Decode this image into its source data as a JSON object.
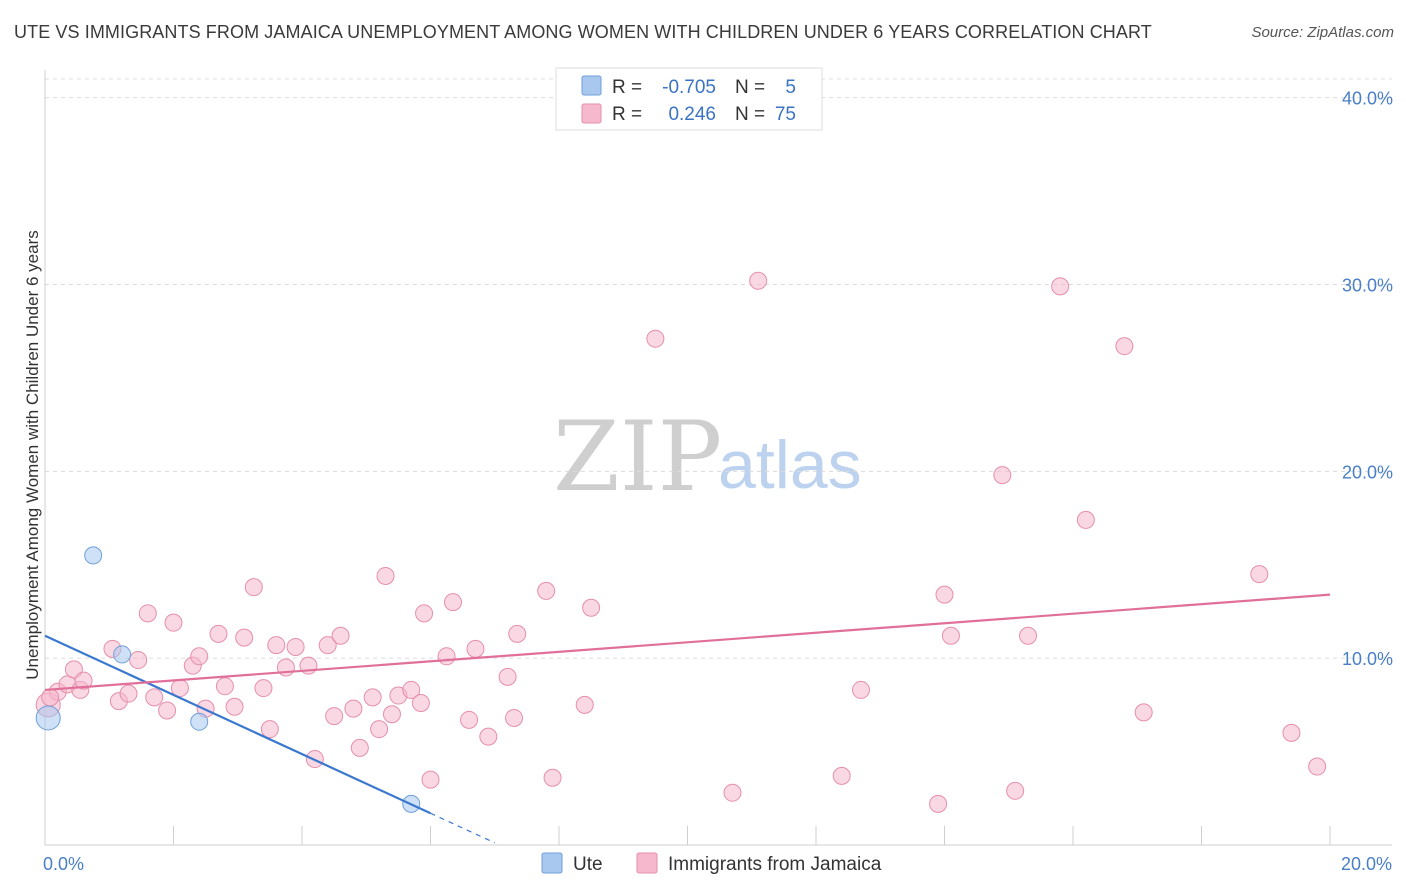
{
  "title": "UTE VS IMMIGRANTS FROM JAMAICA UNEMPLOYMENT AMONG WOMEN WITH CHILDREN UNDER 6 YEARS CORRELATION CHART",
  "source": "Source: ZipAtlas.com",
  "watermark": {
    "zip": "ZIP",
    "atlas": "atlas"
  },
  "legend": {
    "rows": [
      {
        "r_label": "R =",
        "r_value": "-0.705",
        "n_label": "N =",
        "n_value": "5",
        "color": "#a8c8f0"
      },
      {
        "r_label": "R =",
        "r_value": "0.246",
        "n_label": "N =",
        "n_value": "75",
        "color": "#f5b8cc"
      }
    ]
  },
  "bottom_legend": [
    {
      "label": "Ute",
      "color": "#a8c8f0"
    },
    {
      "label": "Immigrants from Jamaica",
      "color": "#f5b8cc"
    }
  ],
  "chart_data": {
    "type": "scatter",
    "title": "UTE VS IMMIGRANTS FROM JAMAICA UNEMPLOYMENT AMONG WOMEN WITH CHILDREN UNDER 6 YEARS CORRELATION CHART",
    "xlabel": "",
    "ylabel": "Unemployment Among Women with Children Under 6 years",
    "xlim": [
      0,
      20
    ],
    "ylim": [
      0,
      41
    ],
    "x_tick_labels": [
      "0.0%",
      "20.0%"
    ],
    "y_ticks": [
      10,
      20,
      30,
      40
    ],
    "y_tick_labels": [
      "10.0%",
      "20.0%",
      "30.0%",
      "40.0%"
    ],
    "grid": true,
    "legend_placement": "top-center",
    "series": [
      {
        "name": "Ute",
        "color": "#a8c8f0",
        "stroke": "#6f9fd8",
        "trend_color": "#3a78d0",
        "trend": {
          "x0": 0,
          "y0": 11.2,
          "x1": 6.0,
          "y1": 1.7,
          "dash_to_x": 7.0
        },
        "points": [
          [
            0.05,
            6.8
          ],
          [
            0.75,
            15.5
          ],
          [
            1.2,
            10.2
          ],
          [
            2.4,
            6.6
          ],
          [
            5.7,
            2.2
          ]
        ]
      },
      {
        "name": "Immigrants from Jamaica",
        "color": "#f5b8cc",
        "stroke": "#e58fab",
        "trend_color": "#e0709a",
        "trend": {
          "x0": 0,
          "y0": 8.3,
          "x1": 20,
          "y1": 13.4
        },
        "points": [
          [
            0.05,
            7.5
          ],
          [
            0.2,
            8.2
          ],
          [
            0.35,
            8.6
          ],
          [
            0.45,
            9.4
          ],
          [
            0.55,
            8.3
          ],
          [
            0.6,
            8.8
          ],
          [
            1.05,
            10.5
          ],
          [
            1.15,
            7.7
          ],
          [
            1.3,
            8.1
          ],
          [
            1.45,
            9.9
          ],
          [
            1.6,
            12.4
          ],
          [
            1.7,
            7.9
          ],
          [
            1.9,
            7.2
          ],
          [
            2.0,
            11.9
          ],
          [
            2.1,
            8.4
          ],
          [
            2.3,
            9.6
          ],
          [
            2.4,
            10.1
          ],
          [
            2.5,
            7.3
          ],
          [
            2.7,
            11.3
          ],
          [
            2.8,
            8.5
          ],
          [
            2.95,
            7.4
          ],
          [
            3.1,
            11.1
          ],
          [
            3.25,
            13.8
          ],
          [
            3.4,
            8.4
          ],
          [
            3.5,
            6.2
          ],
          [
            3.6,
            10.7
          ],
          [
            3.75,
            9.5
          ],
          [
            3.9,
            10.6
          ],
          [
            4.1,
            9.6
          ],
          [
            4.2,
            4.6
          ],
          [
            4.4,
            10.7
          ],
          [
            4.5,
            6.9
          ],
          [
            4.6,
            11.2
          ],
          [
            4.8,
            7.3
          ],
          [
            4.9,
            5.2
          ],
          [
            5.1,
            7.9
          ],
          [
            5.2,
            6.2
          ],
          [
            5.3,
            14.4
          ],
          [
            5.4,
            7.0
          ],
          [
            5.5,
            8.0
          ],
          [
            5.7,
            8.3
          ],
          [
            5.85,
            7.6
          ],
          [
            5.9,
            12.4
          ],
          [
            6.0,
            3.5
          ],
          [
            6.25,
            10.1
          ],
          [
            6.35,
            13.0
          ],
          [
            6.6,
            6.7
          ],
          [
            6.7,
            10.5
          ],
          [
            6.9,
            5.8
          ],
          [
            7.2,
            9.0
          ],
          [
            7.3,
            6.8
          ],
          [
            7.35,
            11.3
          ],
          [
            7.8,
            13.6
          ],
          [
            7.9,
            3.6
          ],
          [
            8.4,
            7.5
          ],
          [
            8.5,
            12.7
          ],
          [
            9.5,
            27.1
          ],
          [
            10.7,
            2.8
          ],
          [
            11.1,
            30.2
          ],
          [
            12.4,
            3.7
          ],
          [
            12.7,
            8.3
          ],
          [
            13.9,
            2.2
          ],
          [
            14.0,
            13.4
          ],
          [
            14.1,
            11.2
          ],
          [
            14.9,
            19.8
          ],
          [
            15.1,
            2.9
          ],
          [
            15.3,
            11.2
          ],
          [
            15.8,
            29.9
          ],
          [
            16.2,
            17.4
          ],
          [
            16.8,
            26.7
          ],
          [
            17.1,
            7.1
          ],
          [
            18.9,
            14.5
          ],
          [
            19.4,
            6.0
          ],
          [
            19.8,
            4.2
          ],
          [
            0.08,
            7.9
          ]
        ]
      }
    ]
  }
}
